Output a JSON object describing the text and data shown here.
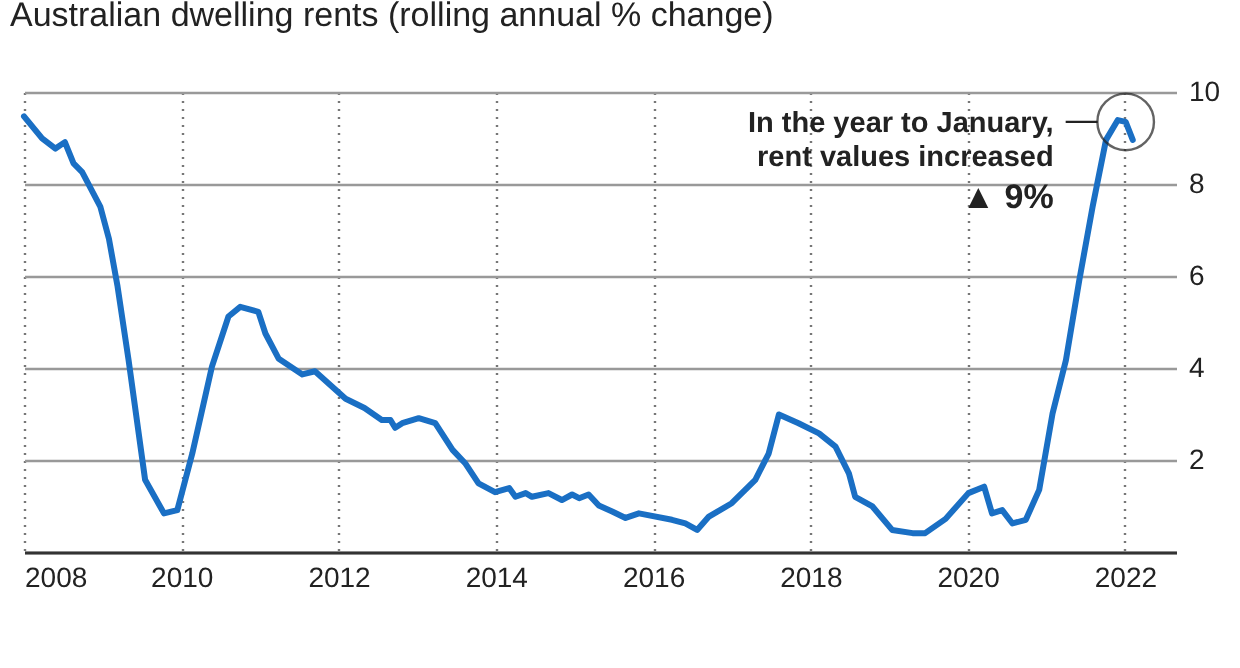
{
  "chart_data": {
    "type": "line",
    "title": "Australian dwelling rents (rolling annual % change)",
    "x": [
      2008.0,
      2008.23,
      2008.4,
      2008.52,
      2008.63,
      2008.74,
      2008.97,
      2009.08,
      2009.19,
      2009.33,
      2009.54,
      2009.78,
      2009.95,
      2010.14,
      2010.39,
      2010.6,
      2010.75,
      2010.98,
      2011.07,
      2011.24,
      2011.54,
      2011.7,
      2012.09,
      2012.33,
      2012.55,
      2012.66,
      2012.72,
      2012.81,
      2013.02,
      2013.23,
      2013.45,
      2013.61,
      2013.78,
      2013.99,
      2014.17,
      2014.25,
      2014.38,
      2014.46,
      2014.67,
      2014.84,
      2014.97,
      2015.06,
      2015.18,
      2015.31,
      2015.48,
      2015.65,
      2015.82,
      2016.24,
      2016.41,
      2016.56,
      2016.71,
      2017.0,
      2017.3,
      2017.47,
      2017.6,
      2017.85,
      2018.11,
      2018.32,
      2018.49,
      2018.57,
      2018.79,
      2019.04,
      2019.3,
      2019.46,
      2019.72,
      2020.01,
      2020.21,
      2020.31,
      2020.44,
      2020.57,
      2020.74,
      2020.91,
      2021.08,
      2021.25,
      2021.42,
      2021.59,
      2021.76,
      2021.91,
      2022.01,
      2022.1
    ],
    "series": [
      {
        "color": "#1a6fc4",
        "values": [
          9.47,
          8.99,
          8.77,
          8.91,
          8.45,
          8.26,
          7.51,
          6.81,
          5.77,
          4.17,
          1.57,
          0.84,
          0.91,
          2.14,
          4.03,
          5.12,
          5.33,
          5.22,
          4.75,
          4.2,
          3.86,
          3.93,
          3.33,
          3.13,
          2.87,
          2.87,
          2.7,
          2.8,
          2.91,
          2.8,
          2.22,
          1.93,
          1.49,
          1.3,
          1.39,
          1.2,
          1.28,
          1.2,
          1.28,
          1.13,
          1.25,
          1.17,
          1.25,
          1.01,
          0.88,
          0.74,
          0.84,
          0.7,
          0.62,
          0.48,
          0.77,
          1.06,
          1.57,
          2.14,
          2.99,
          2.8,
          2.58,
          2.29,
          1.71,
          1.2,
          0.99,
          0.48,
          0.41,
          0.41,
          0.72,
          1.28,
          1.42,
          0.84,
          0.91,
          0.62,
          0.7,
          1.35,
          3.01,
          4.17,
          5.91,
          7.51,
          8.96,
          9.39,
          9.35,
          8.96
        ]
      }
    ],
    "xlim": [
      2008,
      2022.65
    ],
    "xticks": [
      2008,
      2010,
      2012,
      2014,
      2016,
      2018,
      2020,
      2022
    ],
    "ylim": [
      0,
      10
    ],
    "yticks": [
      {
        "value": 0,
        "label": null
      },
      2,
      4,
      6,
      8,
      10
    ],
    "grid": true,
    "marker": "none",
    "line_style": "solid",
    "annotations": [
      {
        "text": "In the year to January,\nrent values increased",
        "x": 2022.01,
        "y": 9.35
      },
      "▲ 9%"
    ]
  }
}
